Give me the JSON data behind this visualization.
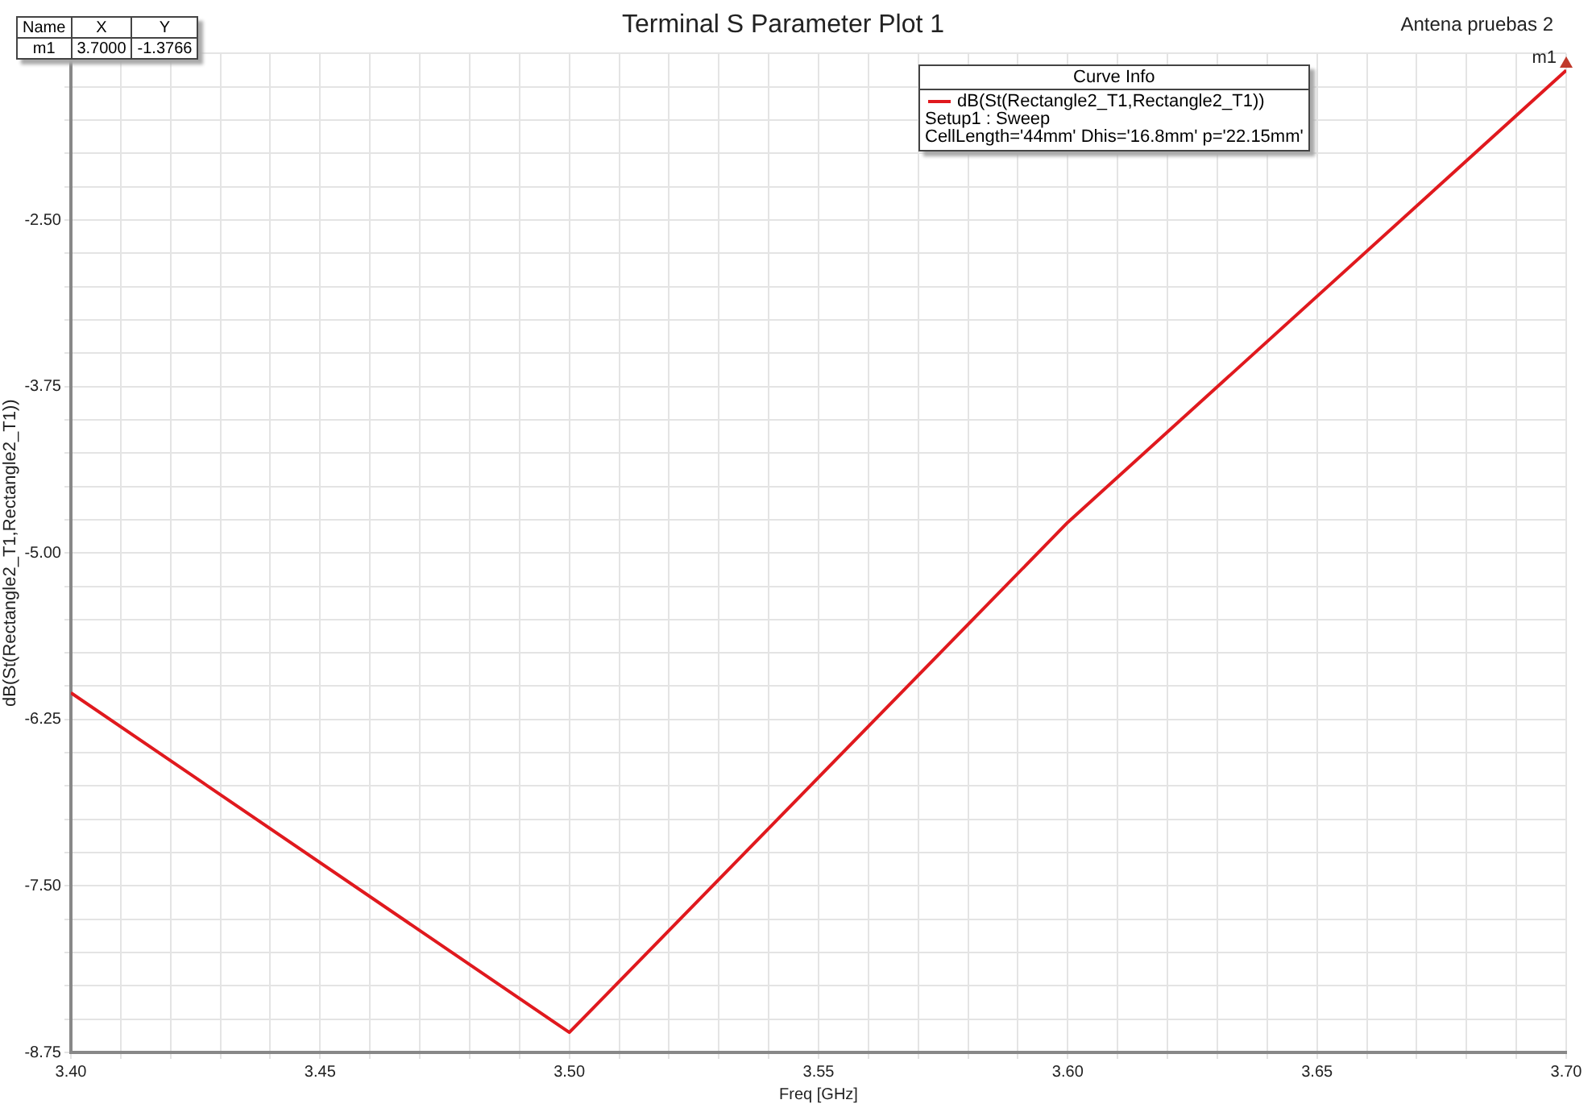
{
  "chart_data": {
    "type": "line",
    "title": "Terminal S Parameter Plot 1",
    "xlabel": "Freq [GHz]",
    "ylabel": "dB(St(Rectangle2_T1,Rectangle2_T1))",
    "legend_title": "Curve Info",
    "x": [
      3.4,
      3.5,
      3.6,
      3.7
    ],
    "series": [
      {
        "name": "dB(St(Rectangle2_T1,Rectangle2_T1))",
        "color": "#e0191e",
        "values": [
          -6.05,
          -8.6,
          -4.77,
          -1.3766
        ]
      }
    ],
    "xlim": [
      3.4,
      3.7
    ],
    "ylim": [
      -8.75,
      -1.25
    ],
    "xticks": [
      {
        "value": 3.4,
        "label": "3.40"
      },
      {
        "value": 3.41,
        "label": null
      },
      {
        "value": 3.42,
        "label": null
      },
      {
        "value": 3.43,
        "label": null
      },
      {
        "value": 3.44,
        "label": null
      },
      {
        "value": 3.45,
        "label": "3.45"
      },
      {
        "value": 3.46,
        "label": null
      },
      {
        "value": 3.47,
        "label": null
      },
      {
        "value": 3.48,
        "label": null
      },
      {
        "value": 3.49,
        "label": null
      },
      {
        "value": 3.5,
        "label": "3.50"
      },
      {
        "value": 3.51,
        "label": null
      },
      {
        "value": 3.52,
        "label": null
      },
      {
        "value": 3.53,
        "label": null
      },
      {
        "value": 3.54,
        "label": null
      },
      {
        "value": 3.55,
        "label": "3.55"
      },
      {
        "value": 3.56,
        "label": null
      },
      {
        "value": 3.57,
        "label": null
      },
      {
        "value": 3.58,
        "label": null
      },
      {
        "value": 3.59,
        "label": null
      },
      {
        "value": 3.6,
        "label": "3.60"
      },
      {
        "value": 3.61,
        "label": null
      },
      {
        "value": 3.62,
        "label": null
      },
      {
        "value": 3.63,
        "label": null
      },
      {
        "value": 3.64,
        "label": null
      },
      {
        "value": 3.65,
        "label": "3.65"
      },
      {
        "value": 3.66,
        "label": null
      },
      {
        "value": 3.67,
        "label": null
      },
      {
        "value": 3.68,
        "label": null
      },
      {
        "value": 3.69,
        "label": null
      },
      {
        "value": 3.7,
        "label": "3.70"
      }
    ],
    "yticks": [
      {
        "value": -8.75,
        "label": "-8.75"
      },
      {
        "value": -8.5,
        "label": null
      },
      {
        "value": -8.25,
        "label": null
      },
      {
        "value": -8,
        "label": null
      },
      {
        "value": -7.75,
        "label": null
      },
      {
        "value": -7.5,
        "label": "-7.50"
      },
      {
        "value": -7.25,
        "label": null
      },
      {
        "value": -7,
        "label": null
      },
      {
        "value": -6.75,
        "label": null
      },
      {
        "value": -6.5,
        "label": null
      },
      {
        "value": -6.25,
        "label": "-6.25"
      },
      {
        "value": -6,
        "label": null
      },
      {
        "value": -5.75,
        "label": null
      },
      {
        "value": -5.5,
        "label": null
      },
      {
        "value": -5.25,
        "label": null
      },
      {
        "value": -5,
        "label": "-5.00"
      },
      {
        "value": -4.75,
        "label": null
      },
      {
        "value": -4.5,
        "label": null
      },
      {
        "value": -4.25,
        "label": null
      },
      {
        "value": -4,
        "label": null
      },
      {
        "value": -3.75,
        "label": "-3.75"
      },
      {
        "value": -3.5,
        "label": null
      },
      {
        "value": -3.25,
        "label": null
      },
      {
        "value": -3,
        "label": null
      },
      {
        "value": -2.75,
        "label": null
      },
      {
        "value": -2.5,
        "label": "-2.50"
      },
      {
        "value": -2.25,
        "label": null
      },
      {
        "value": -2,
        "label": null
      },
      {
        "value": -1.75,
        "label": null
      },
      {
        "value": -1.5,
        "label": null
      },
      {
        "value": -1.25,
        "label": null
      }
    ],
    "grid": true,
    "legend": "top",
    "marker": "none",
    "line_style": "solid",
    "annotations": [
      "Antena pruebas 2",
      "Setup1 : Sweep",
      "CellLength='44mm' Dhis='16.8mm' p='22.15mm'",
      {
        "text": "m1",
        "x": 3.7,
        "y": -1.3766
      },
      "Name",
      "X",
      "Y",
      "m1",
      "3.7000",
      "-1.3766"
    ]
  }
}
